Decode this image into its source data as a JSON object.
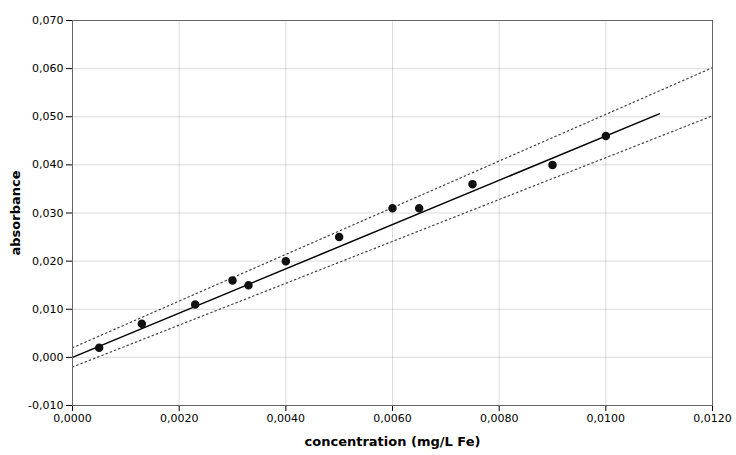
{
  "chart_data": {
    "type": "scatter",
    "xlabel": "concentration (mg/L Fe)",
    "ylabel": "absorbance",
    "xlim": [
      0.0,
      0.012
    ],
    "ylim": [
      -0.01,
      0.07
    ],
    "xticks": [
      {
        "value": 0.0,
        "label": "0,0000"
      },
      {
        "value": 0.002,
        "label": "0,0020"
      },
      {
        "value": 0.004,
        "label": "0,0040"
      },
      {
        "value": 0.006,
        "label": "0,0060"
      },
      {
        "value": 0.008,
        "label": "0,0080"
      },
      {
        "value": 0.01,
        "label": "0,0100"
      },
      {
        "value": 0.012,
        "label": "0,0120"
      }
    ],
    "yticks": [
      {
        "value": -0.01,
        "label": "-0,010"
      },
      {
        "value": 0.0,
        "label": "0,000"
      },
      {
        "value": 0.01,
        "label": "0,010"
      },
      {
        "value": 0.02,
        "label": "0,020"
      },
      {
        "value": 0.03,
        "label": "0,030"
      },
      {
        "value": 0.04,
        "label": "0,040"
      },
      {
        "value": 0.05,
        "label": "0,050"
      },
      {
        "value": 0.06,
        "label": "0,060"
      },
      {
        "value": 0.07,
        "label": "0,070"
      }
    ],
    "grid": true,
    "series": [
      {
        "type": "line",
        "line_style": "dotted",
        "color": "#444444",
        "x": [
          0.0,
          0.012
        ],
        "values": [
          0.002,
          0.0602
        ]
      },
      {
        "type": "line",
        "line_style": "dotted",
        "color": "#444444",
        "x": [
          0.0,
          0.012
        ],
        "values": [
          -0.002,
          0.0502
        ]
      },
      {
        "type": "line",
        "line_style": "solid",
        "color": "#000000",
        "x": [
          0.0,
          0.011
        ],
        "values": [
          0.0,
          0.0506
        ]
      },
      {
        "type": "scatter",
        "marker": "circle",
        "color": "#111111",
        "x": [
          0.0005,
          0.0013,
          0.0023,
          0.003,
          0.0033,
          0.004,
          0.005,
          0.006,
          0.0065,
          0.0075,
          0.009,
          0.01
        ],
        "values": [
          0.002,
          0.007,
          0.011,
          0.016,
          0.015,
          0.02,
          0.025,
          0.031,
          0.031,
          0.036,
          0.04,
          0.046
        ]
      }
    ]
  }
}
